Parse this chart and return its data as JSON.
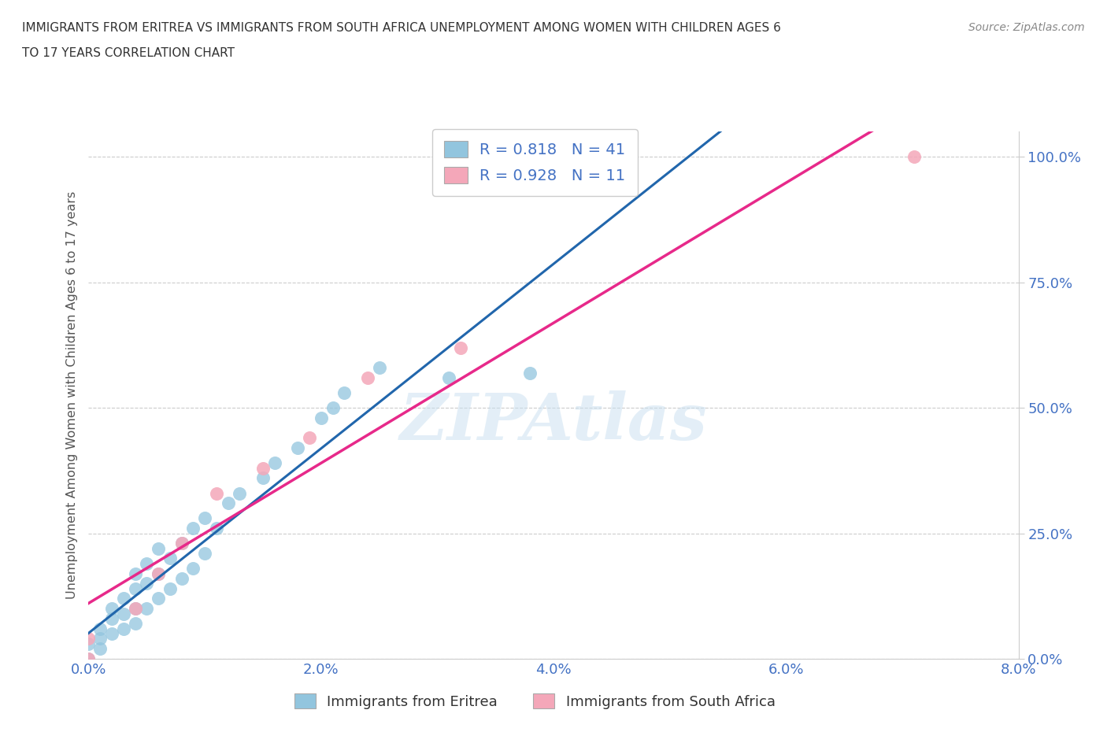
{
  "title_line1": "IMMIGRANTS FROM ERITREA VS IMMIGRANTS FROM SOUTH AFRICA UNEMPLOYMENT AMONG WOMEN WITH CHILDREN AGES 6",
  "title_line2": "TO 17 YEARS CORRELATION CHART",
  "source": "Source: ZipAtlas.com",
  "ylabel": "Unemployment Among Women with Children Ages 6 to 17 years",
  "xlim": [
    0.0,
    0.08
  ],
  "ylim": [
    0.0,
    1.05
  ],
  "xtick_labels": [
    "0.0%",
    "2.0%",
    "4.0%",
    "6.0%",
    "8.0%"
  ],
  "xtick_vals": [
    0.0,
    0.02,
    0.04,
    0.06,
    0.08
  ],
  "ytick_labels": [
    "0.0%",
    "25.0%",
    "50.0%",
    "75.0%",
    "100.0%"
  ],
  "ytick_vals": [
    0.0,
    0.25,
    0.5,
    0.75,
    1.0
  ],
  "eritrea_color": "#92c5de",
  "south_africa_color": "#f4a7b9",
  "eritrea_line_color": "#2166ac",
  "south_africa_line_color": "#e7298a",
  "dash_line_color": "#92c5de",
  "R_eritrea": 0.818,
  "N_eritrea": 41,
  "R_south_africa": 0.928,
  "N_south_africa": 11,
  "watermark": "ZIPAtlas",
  "eritrea_x": [
    0.0,
    0.0,
    0.001,
    0.001,
    0.001,
    0.002,
    0.002,
    0.002,
    0.003,
    0.003,
    0.003,
    0.004,
    0.004,
    0.004,
    0.004,
    0.005,
    0.005,
    0.005,
    0.006,
    0.006,
    0.006,
    0.007,
    0.007,
    0.008,
    0.008,
    0.009,
    0.009,
    0.01,
    0.01,
    0.011,
    0.012,
    0.013,
    0.015,
    0.016,
    0.018,
    0.02,
    0.021,
    0.022,
    0.025,
    0.031,
    0.038
  ],
  "eritrea_y": [
    0.0,
    0.03,
    0.02,
    0.04,
    0.06,
    0.05,
    0.08,
    0.1,
    0.06,
    0.09,
    0.12,
    0.07,
    0.1,
    0.14,
    0.17,
    0.1,
    0.15,
    0.19,
    0.12,
    0.17,
    0.22,
    0.14,
    0.2,
    0.16,
    0.23,
    0.18,
    0.26,
    0.21,
    0.28,
    0.26,
    0.31,
    0.33,
    0.36,
    0.39,
    0.42,
    0.48,
    0.5,
    0.53,
    0.58,
    0.56,
    0.57
  ],
  "south_africa_x": [
    0.0,
    0.0,
    0.004,
    0.006,
    0.008,
    0.011,
    0.015,
    0.019,
    0.024,
    0.032,
    0.071
  ],
  "south_africa_y": [
    0.0,
    0.04,
    0.1,
    0.17,
    0.23,
    0.33,
    0.38,
    0.44,
    0.56,
    0.62,
    1.0
  ],
  "background_color": "#ffffff",
  "grid_color": "#cccccc",
  "tick_color": "#4472c4",
  "legend_label_color": "#4472c4"
}
